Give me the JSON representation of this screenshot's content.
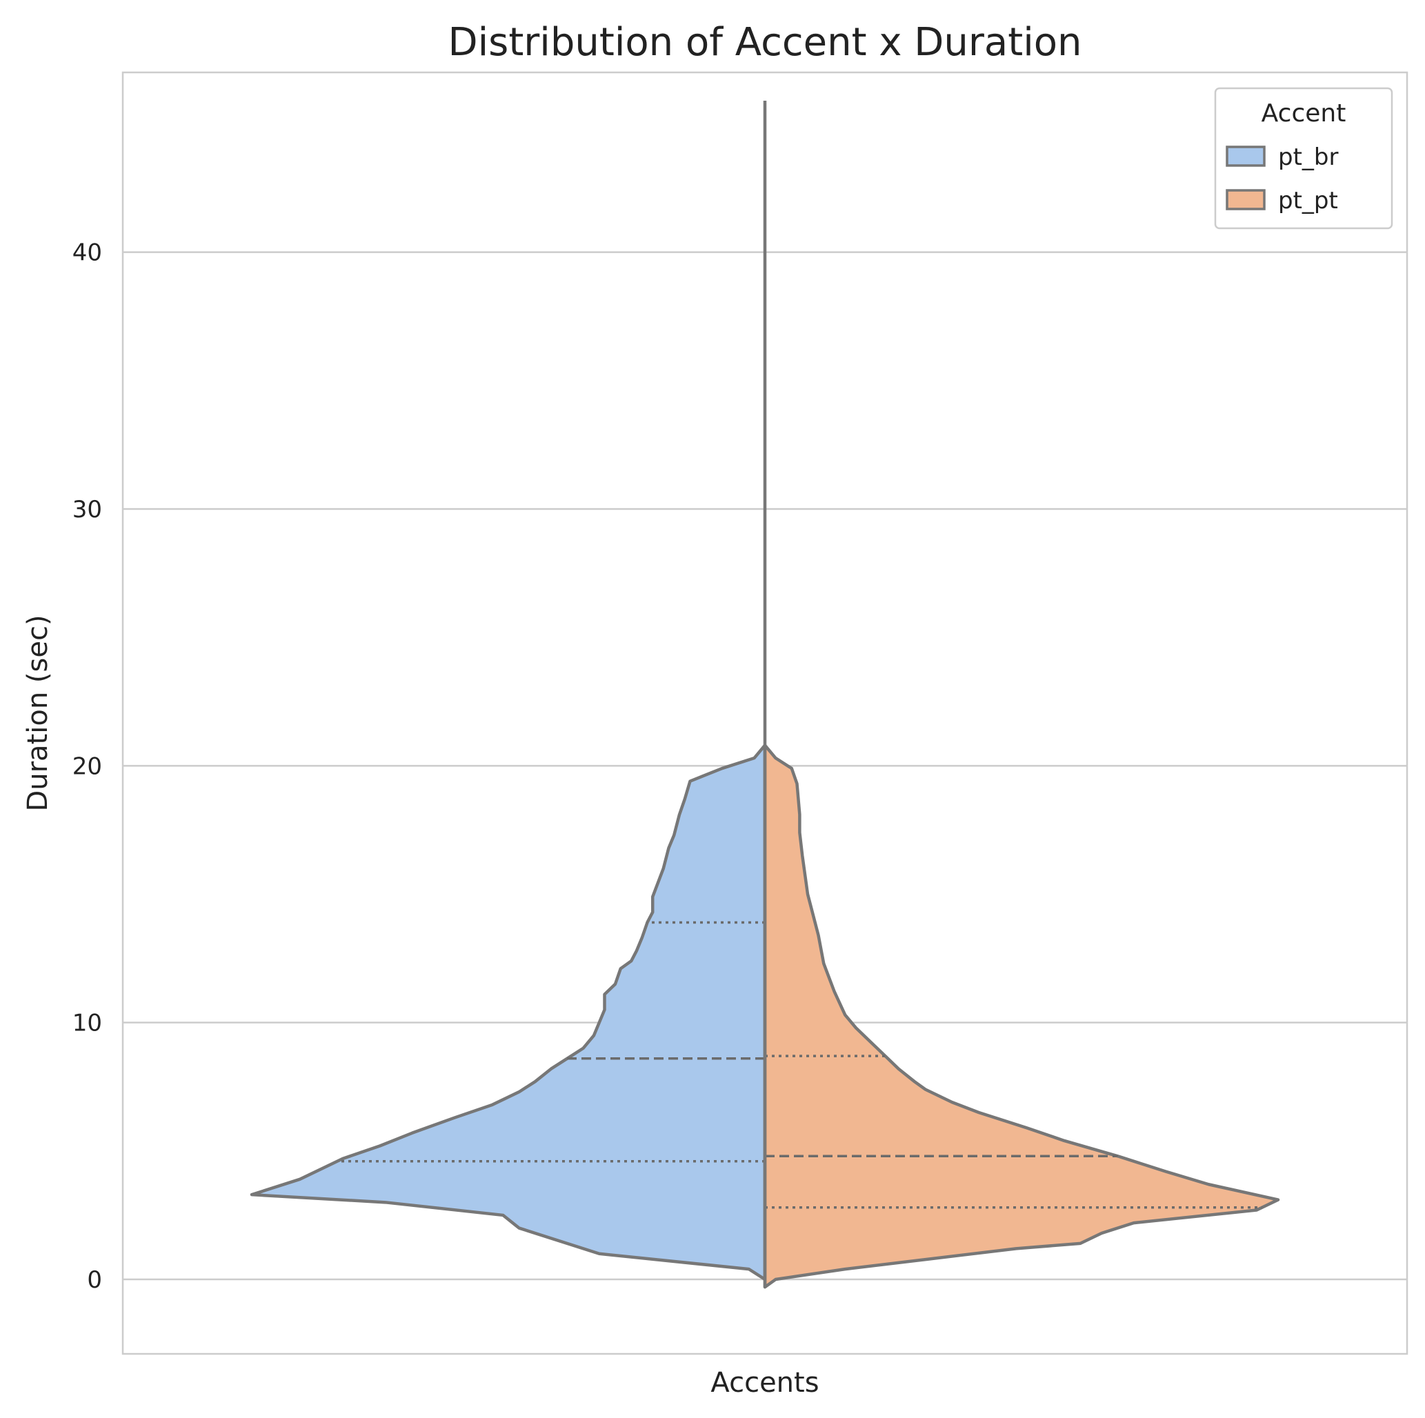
{
  "chart_data": {
    "type": "violin",
    "split": true,
    "title": "Distribution of Accent x Duration",
    "xlabel": "Accents",
    "ylabel": "Duration (sec)",
    "x_ticks": [],
    "y_ticks": [
      0,
      10,
      20,
      30,
      40
    ],
    "ylim": [
      -2.9,
      47.0
    ],
    "grid": "horizontal",
    "legend": {
      "title": "Accent",
      "position": "top-right",
      "entries": [
        "pt_br",
        "pt_pt"
      ]
    },
    "series": [
      {
        "name": "pt_br",
        "color": "#A9C8EC",
        "side": "left",
        "density": [
          [
            0.0,
            0.0
          ],
          [
            0.03,
            0.4
          ],
          [
            0.31,
            1.0
          ],
          [
            0.46,
            2.0
          ],
          [
            0.49,
            2.5
          ],
          [
            0.71,
            3.0
          ],
          [
            0.96,
            3.3
          ],
          [
            0.87,
            3.9
          ],
          [
            0.79,
            4.7
          ],
          [
            0.72,
            5.2
          ],
          [
            0.66,
            5.7
          ],
          [
            0.58,
            6.3
          ],
          [
            0.51,
            6.8
          ],
          [
            0.46,
            7.3
          ],
          [
            0.43,
            7.7
          ],
          [
            0.4,
            8.2
          ],
          [
            0.37,
            8.6
          ],
          [
            0.34,
            9.0
          ],
          [
            0.32,
            9.5
          ],
          [
            0.31,
            10.0
          ],
          [
            0.3,
            10.5
          ],
          [
            0.3,
            11.1
          ],
          [
            0.28,
            11.5
          ],
          [
            0.27,
            12.1
          ],
          [
            0.25,
            12.4
          ],
          [
            0.24,
            12.8
          ],
          [
            0.23,
            13.3
          ],
          [
            0.22,
            13.9
          ],
          [
            0.21,
            14.3
          ],
          [
            0.21,
            14.9
          ],
          [
            0.19,
            16.0
          ],
          [
            0.18,
            16.8
          ],
          [
            0.17,
            17.3
          ],
          [
            0.16,
            18.1
          ],
          [
            0.15,
            18.7
          ],
          [
            0.14,
            19.4
          ],
          [
            0.08,
            19.9
          ],
          [
            0.02,
            20.3
          ],
          [
            0.0,
            20.8
          ]
        ],
        "quartiles": [
          4.6,
          8.6,
          13.9
        ]
      },
      {
        "name": "pt_pt",
        "color": "#F1B791",
        "side": "right",
        "density": [
          [
            0.0,
            -0.3
          ],
          [
            0.02,
            0.0
          ],
          [
            0.15,
            0.4
          ],
          [
            0.31,
            0.8
          ],
          [
            0.47,
            1.2
          ],
          [
            0.59,
            1.4
          ],
          [
            0.63,
            1.8
          ],
          [
            0.69,
            2.2
          ],
          [
            0.92,
            2.7
          ],
          [
            0.96,
            3.1
          ],
          [
            0.83,
            3.7
          ],
          [
            0.75,
            4.2
          ],
          [
            0.66,
            4.8
          ],
          [
            0.56,
            5.4
          ],
          [
            0.49,
            5.9
          ],
          [
            0.4,
            6.5
          ],
          [
            0.35,
            6.9
          ],
          [
            0.3,
            7.4
          ],
          [
            0.28,
            7.7
          ],
          [
            0.25,
            8.2
          ],
          [
            0.23,
            8.6
          ],
          [
            0.2,
            9.2
          ],
          [
            0.17,
            9.8
          ],
          [
            0.15,
            10.3
          ],
          [
            0.13,
            11.2
          ],
          [
            0.11,
            12.3
          ],
          [
            0.1,
            13.4
          ],
          [
            0.08,
            15.0
          ],
          [
            0.07,
            16.5
          ],
          [
            0.065,
            17.4
          ],
          [
            0.065,
            18.1
          ],
          [
            0.06,
            19.3
          ],
          [
            0.05,
            19.9
          ],
          [
            0.02,
            20.3
          ],
          [
            0.0,
            20.8
          ]
        ],
        "quartiles": [
          2.8,
          4.8,
          8.7
        ]
      }
    ],
    "whisker": {
      "min": -0.3,
      "max": 45.9
    }
  }
}
